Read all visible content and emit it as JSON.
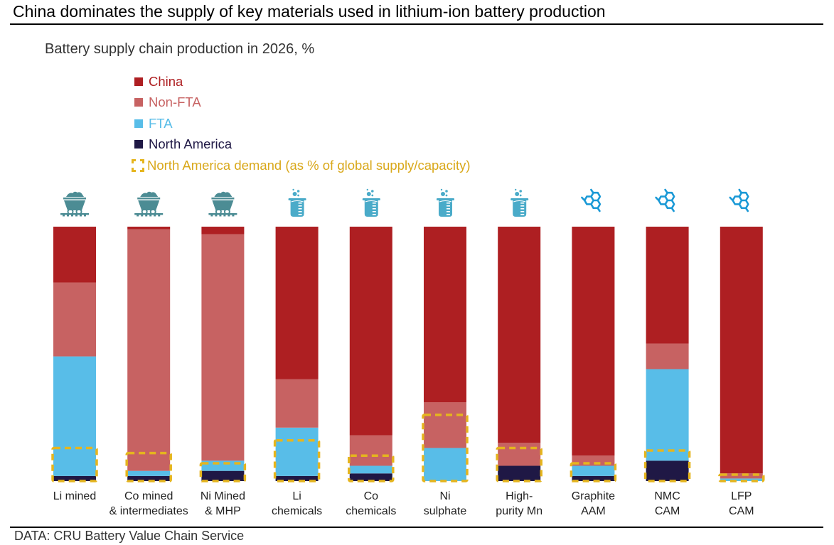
{
  "headline": "China dominates the supply of key materials used in lithium-ion battery production",
  "source": "DATA: CRU Battery Value Chain Service",
  "colors": {
    "China": "#ae1f22",
    "Non-FTA": "#c76262",
    "FTA": "#58bde8",
    "North America": "#1f1845",
    "demand": "#e5b51e",
    "mine_icon": "#4c8c94",
    "beaker_icon": "#4aabc9",
    "graphite_icon": "#1a99d6"
  },
  "chart_data": {
    "type": "bar",
    "stacked": true,
    "title": "Battery supply chain production in 2026, %",
    "xlabel": "",
    "ylabel": "",
    "ylim": [
      0,
      100
    ],
    "grid": false,
    "legend_position": "top-left",
    "legend": [
      {
        "name": "China",
        "key": "China"
      },
      {
        "name": "Non-FTA",
        "key": "Non-FTA"
      },
      {
        "name": "FTA",
        "key": "FTA"
      },
      {
        "name": "North America",
        "key": "North America"
      },
      {
        "name": "North America demand (as % of global supply/capacity)",
        "key": "demand"
      }
    ],
    "categories": [
      {
        "label": [
          "Li mined"
        ],
        "icon": "mine-cart-icon"
      },
      {
        "label": [
          "Co mined",
          "& intermediates"
        ],
        "icon": "mine-cart-icon"
      },
      {
        "label": [
          "Ni Mined",
          "& MHP"
        ],
        "icon": "mine-cart-icon"
      },
      {
        "label": [
          "Li",
          "chemicals"
        ],
        "icon": "beaker-icon"
      },
      {
        "label": [
          "Co",
          "chemicals"
        ],
        "icon": "beaker-icon"
      },
      {
        "label": [
          "Ni",
          "sulphate"
        ],
        "icon": "beaker-icon"
      },
      {
        "label": [
          "High-",
          "purity Mn"
        ],
        "icon": "beaker-icon"
      },
      {
        "label": [
          "Graphite",
          "AAM"
        ],
        "icon": "graphite-molecule-icon"
      },
      {
        "label": [
          "NMC",
          "CAM"
        ],
        "icon": "graphite-molecule-icon"
      },
      {
        "label": [
          "LFP",
          "CAM"
        ],
        "icon": "graphite-molecule-icon"
      }
    ],
    "series": [
      {
        "name": "North America",
        "values": [
          2,
          2,
          4,
          2,
          3,
          0,
          6,
          2,
          8,
          0
        ]
      },
      {
        "name": "FTA",
        "values": [
          47,
          2,
          4,
          19,
          3,
          13,
          0,
          4,
          36,
          1
        ]
      },
      {
        "name": "Non-FTA",
        "values": [
          29,
          95,
          89,
          19,
          12,
          18,
          9,
          4,
          10,
          2
        ]
      },
      {
        "name": "China",
        "values": [
          22,
          1,
          3,
          60,
          82,
          69,
          85,
          90,
          46,
          97
        ]
      }
    ],
    "demand": {
      "name": "North America demand (as % of global supply/capacity)",
      "values": [
        13,
        11,
        7,
        16,
        10,
        26,
        13,
        7,
        12,
        2.5
      ]
    }
  }
}
